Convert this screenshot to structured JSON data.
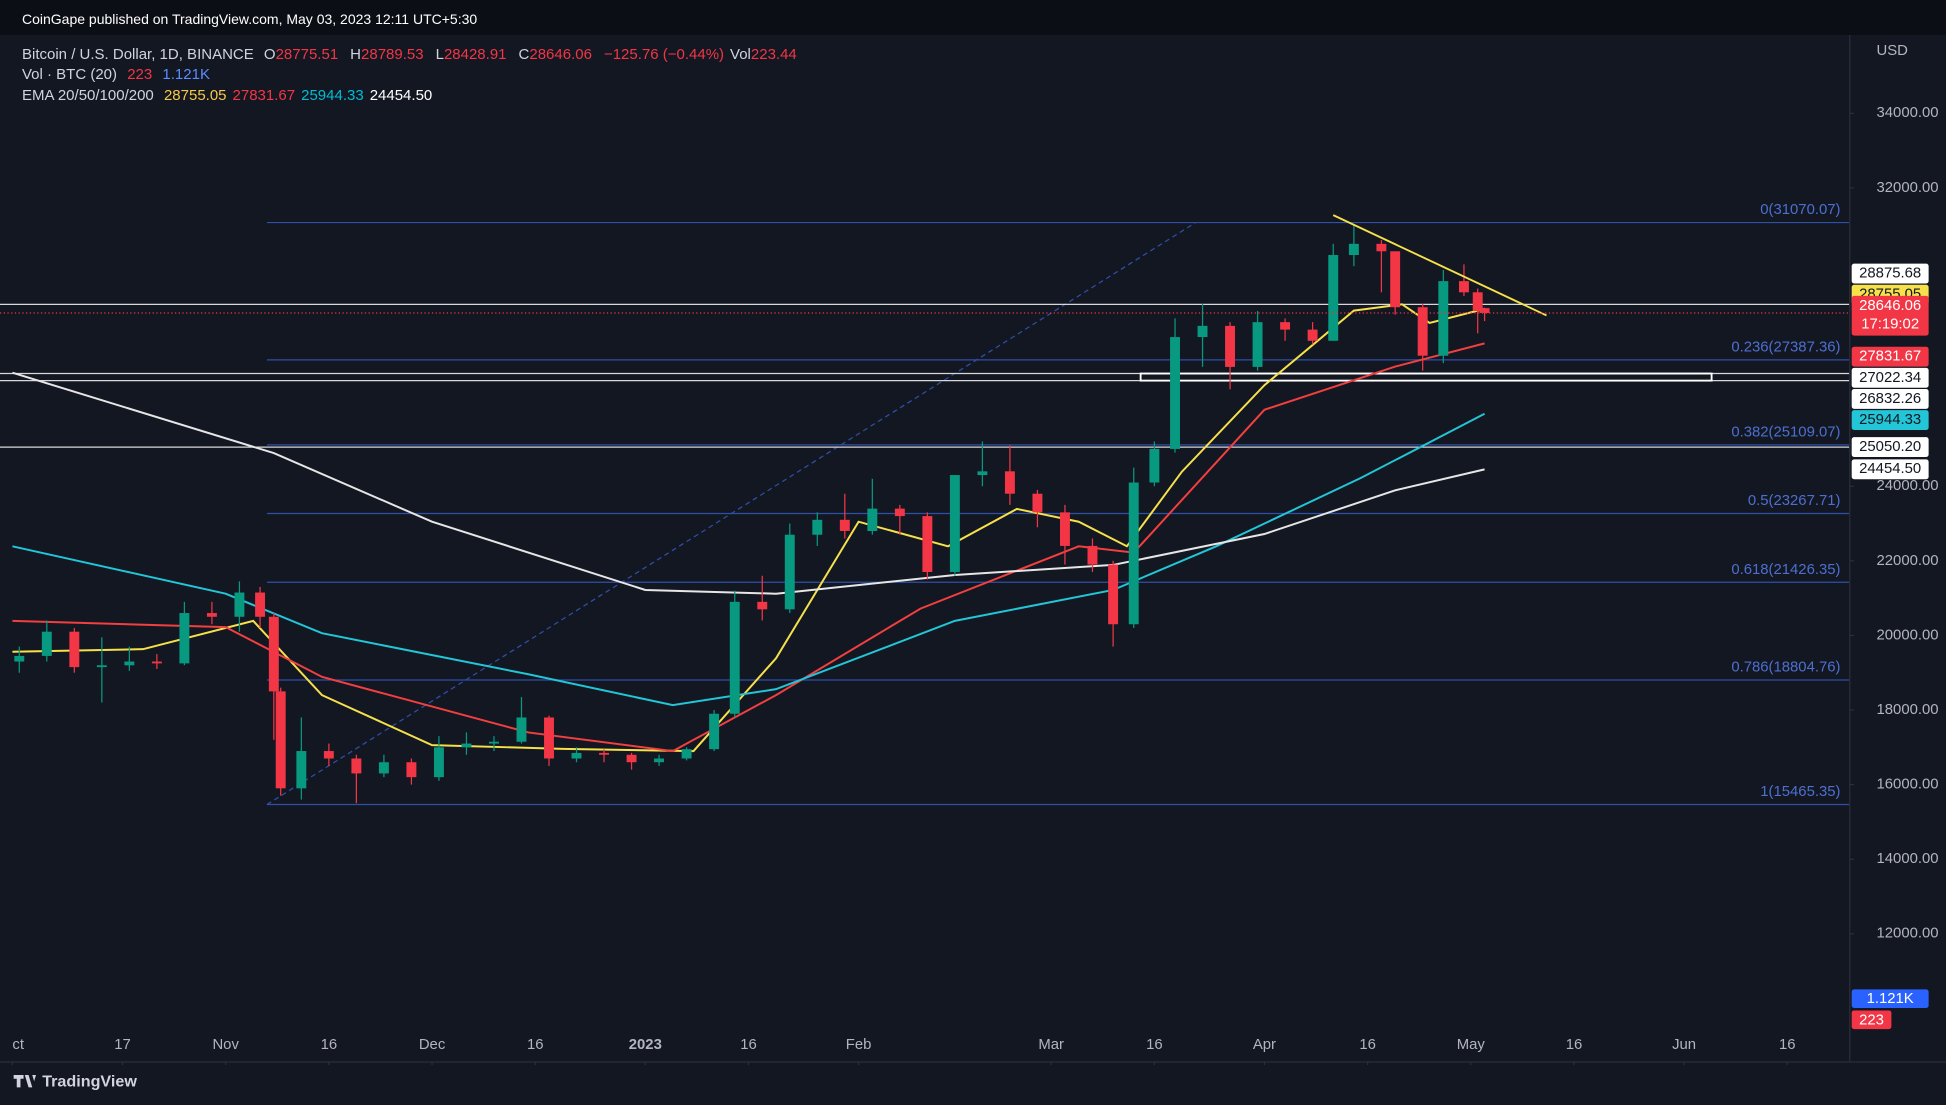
{
  "header": {
    "publisher": "CoinGape published on TradingView.com, May 03, 2023 12:11 UTC+5:30",
    "symbol": "Bitcoin / U.S. Dollar, 1D, BINANCE",
    "ohlc": [
      {
        "label": "O",
        "value": 28775.51
      },
      {
        "label": "H",
        "value": 28789.53
      },
      {
        "label": "L",
        "value": 28428.91
      },
      {
        "label": "C",
        "value": 28646.06
      }
    ],
    "change": "−125.76 (−0.44%)",
    "vol_label": "Vol",
    "vol": 223.44,
    "vol_study": "Vol · BTC (20)",
    "vol_last": 223,
    "vol_ma": "1.121K",
    "ema_study": "EMA 20/50/100/200",
    "ema_values": [
      {
        "value": 28755.05,
        "color": "#f7c948"
      },
      {
        "value": 27831.67,
        "color": "#f23645"
      },
      {
        "value": 25944.33,
        "color": "#00bcd4"
      },
      {
        "value": 24454.5,
        "label": "24454.50",
        "color": "#ffffff"
      }
    ]
  },
  "footer": "TradingView",
  "chart_data": {
    "type": "candlestick",
    "currency": "USD",
    "xlim": [
      "2022-10-01",
      "2023-06-25"
    ],
    "ylim": [
      8580,
      36100
    ],
    "yticks": [
      {
        "value": 12000,
        "label": "12000.00"
      },
      {
        "value": 14000,
        "label": "14000.00"
      },
      {
        "value": 16000,
        "label": "16000.00"
      },
      {
        "value": 18000,
        "label": "18000.00"
      },
      {
        "value": 20000,
        "label": "20000.00"
      },
      {
        "value": 22000,
        "label": "22000.00"
      },
      {
        "value": 24000,
        "label": "24000.00"
      },
      {
        "value": 32000,
        "label": "32000.00"
      },
      {
        "value": 34000,
        "label": "34000.00"
      }
    ],
    "xticks": [
      {
        "value": "2022-10-01",
        "label": "ct"
      },
      {
        "value": "2022-10-17",
        "label": "17"
      },
      {
        "value": "2022-11-01",
        "label": "Nov"
      },
      {
        "value": "2022-11-16",
        "label": "16"
      },
      {
        "value": "2022-12-01",
        "label": "Dec"
      },
      {
        "value": "2022-12-16",
        "label": "16"
      },
      {
        "value": "2023-01-01",
        "label": "2023"
      },
      {
        "value": "2023-01-16",
        "label": "16"
      },
      {
        "value": "2023-02-01",
        "label": "Feb"
      },
      {
        "value": "2023-03-01",
        "label": "Mar"
      },
      {
        "value": "2023-03-16",
        "label": "16"
      },
      {
        "value": "2023-04-01",
        "label": "Apr"
      },
      {
        "value": "2023-04-16",
        "label": "16"
      },
      {
        "value": "2023-05-01",
        "label": "May"
      },
      {
        "value": "2023-05-16",
        "label": "16"
      },
      {
        "value": "2023-06-01",
        "label": "Jun"
      },
      {
        "value": "2023-06-16",
        "label": "16"
      }
    ],
    "up_color": "#089981",
    "down_color": "#f23645",
    "candles": [
      {
        "date": "2022-10-02",
        "open": 19300,
        "high": 19700,
        "low": 19000,
        "close": 19450
      },
      {
        "date": "2022-10-06",
        "open": 19450,
        "high": 20400,
        "low": 19300,
        "close": 20100
      },
      {
        "date": "2022-10-10",
        "open": 20100,
        "high": 20200,
        "low": 19000,
        "close": 19150
      },
      {
        "date": "2022-10-14",
        "open": 19150,
        "high": 19950,
        "low": 18200,
        "close": 19200
      },
      {
        "date": "2022-10-18",
        "open": 19200,
        "high": 19700,
        "low": 19050,
        "close": 19300
      },
      {
        "date": "2022-10-22",
        "open": 19300,
        "high": 19500,
        "low": 19100,
        "close": 19250
      },
      {
        "date": "2022-10-26",
        "open": 19250,
        "high": 20900,
        "low": 19200,
        "close": 20600
      },
      {
        "date": "2022-10-30",
        "open": 20600,
        "high": 20900,
        "low": 20300,
        "close": 20500
      },
      {
        "date": "2022-11-03",
        "open": 20500,
        "high": 21450,
        "low": 20100,
        "close": 21150
      },
      {
        "date": "2022-11-06",
        "open": 21150,
        "high": 21300,
        "low": 20200,
        "close": 20500
      },
      {
        "date": "2022-11-08",
        "open": 20500,
        "high": 20600,
        "low": 17200,
        "close": 18500
      },
      {
        "date": "2022-11-09",
        "open": 18500,
        "high": 18600,
        "low": 15700,
        "close": 15900
      },
      {
        "date": "2022-11-12",
        "open": 15900,
        "high": 17800,
        "low": 15600,
        "close": 16900
      },
      {
        "date": "2022-11-16",
        "open": 16900,
        "high": 17100,
        "low": 16500,
        "close": 16700
      },
      {
        "date": "2022-11-20",
        "open": 16700,
        "high": 16800,
        "low": 15500,
        "close": 16300
      },
      {
        "date": "2022-11-24",
        "open": 16300,
        "high": 16800,
        "low": 16200,
        "close": 16600
      },
      {
        "date": "2022-11-28",
        "open": 16600,
        "high": 16700,
        "low": 16000,
        "close": 16200
      },
      {
        "date": "2022-12-02",
        "open": 16200,
        "high": 17300,
        "low": 16100,
        "close": 17000
      },
      {
        "date": "2022-12-06",
        "open": 17000,
        "high": 17400,
        "low": 16800,
        "close": 17100
      },
      {
        "date": "2022-12-10",
        "open": 17100,
        "high": 17300,
        "low": 16900,
        "close": 17150
      },
      {
        "date": "2022-12-14",
        "open": 17150,
        "high": 18350,
        "low": 17100,
        "close": 17800
      },
      {
        "date": "2022-12-18",
        "open": 17800,
        "high": 17850,
        "low": 16500,
        "close": 16700
      },
      {
        "date": "2022-12-22",
        "open": 16700,
        "high": 17000,
        "low": 16600,
        "close": 16850
      },
      {
        "date": "2022-12-26",
        "open": 16850,
        "high": 16950,
        "low": 16600,
        "close": 16800
      },
      {
        "date": "2022-12-30",
        "open": 16800,
        "high": 16850,
        "low": 16400,
        "close": 16600
      },
      {
        "date": "2023-01-03",
        "open": 16600,
        "high": 16800,
        "low": 16500,
        "close": 16700
      },
      {
        "date": "2023-01-07",
        "open": 16700,
        "high": 17000,
        "low": 16650,
        "close": 16950
      },
      {
        "date": "2023-01-11",
        "open": 16950,
        "high": 18000,
        "low": 16900,
        "close": 17900
      },
      {
        "date": "2023-01-14",
        "open": 17900,
        "high": 21200,
        "low": 17800,
        "close": 20900
      },
      {
        "date": "2023-01-18",
        "open": 20900,
        "high": 21600,
        "low": 20400,
        "close": 20700
      },
      {
        "date": "2023-01-22",
        "open": 20700,
        "high": 23000,
        "low": 20600,
        "close": 22700
      },
      {
        "date": "2023-01-26",
        "open": 22700,
        "high": 23300,
        "low": 22400,
        "close": 23100
      },
      {
        "date": "2023-01-30",
        "open": 23100,
        "high": 23800,
        "low": 22600,
        "close": 22800
      },
      {
        "date": "2023-02-03",
        "open": 22800,
        "high": 24200,
        "low": 22700,
        "close": 23400
      },
      {
        "date": "2023-02-07",
        "open": 23400,
        "high": 23500,
        "low": 22700,
        "close": 23200
      },
      {
        "date": "2023-02-11",
        "open": 23200,
        "high": 23300,
        "low": 21500,
        "close": 21700
      },
      {
        "date": "2023-02-15",
        "open": 21700,
        "high": 24300,
        "low": 21600,
        "close": 24300
      },
      {
        "date": "2023-02-19",
        "open": 24300,
        "high": 25200,
        "low": 24000,
        "close": 24400
      },
      {
        "date": "2023-02-23",
        "open": 24400,
        "high": 25100,
        "low": 23500,
        "close": 23800
      },
      {
        "date": "2023-02-27",
        "open": 23800,
        "high": 23900,
        "low": 22900,
        "close": 23300
      },
      {
        "date": "2023-03-03",
        "open": 23300,
        "high": 23500,
        "low": 21900,
        "close": 22400
      },
      {
        "date": "2023-03-07",
        "open": 22400,
        "high": 22600,
        "low": 21700,
        "close": 21900
      },
      {
        "date": "2023-03-10",
        "open": 21900,
        "high": 22000,
        "low": 19700,
        "close": 20300
      },
      {
        "date": "2023-03-13",
        "open": 20300,
        "high": 24500,
        "low": 20200,
        "close": 24100
      },
      {
        "date": "2023-03-16",
        "open": 24100,
        "high": 25200,
        "low": 24000,
        "close": 25000
      },
      {
        "date": "2023-03-19",
        "open": 25000,
        "high": 28500,
        "low": 24900,
        "close": 28000
      },
      {
        "date": "2023-03-23",
        "open": 28000,
        "high": 28900,
        "low": 27200,
        "close": 28300
      },
      {
        "date": "2023-03-27",
        "open": 28300,
        "high": 28400,
        "low": 26600,
        "close": 27200
      },
      {
        "date": "2023-03-31",
        "open": 27200,
        "high": 28700,
        "low": 27100,
        "close": 28400
      },
      {
        "date": "2023-04-04",
        "open": 28400,
        "high": 28500,
        "low": 27900,
        "close": 28200
      },
      {
        "date": "2023-04-08",
        "open": 28200,
        "high": 28400,
        "low": 27800,
        "close": 27900
      },
      {
        "date": "2023-04-11",
        "open": 27900,
        "high": 30500,
        "low": 27900,
        "close": 30200
      },
      {
        "date": "2023-04-14",
        "open": 30200,
        "high": 31000,
        "low": 29900,
        "close": 30500
      },
      {
        "date": "2023-04-18",
        "open": 30500,
        "high": 30600,
        "low": 29200,
        "close": 30300
      },
      {
        "date": "2023-04-20",
        "open": 30300,
        "high": 30300,
        "low": 28600,
        "close": 28800
      },
      {
        "date": "2023-04-24",
        "open": 28800,
        "high": 28900,
        "low": 27100,
        "close": 27500
      },
      {
        "date": "2023-04-27",
        "open": 27500,
        "high": 29800,
        "low": 27300,
        "close": 29500
      },
      {
        "date": "2023-04-30",
        "open": 29500,
        "high": 29950,
        "low": 29100,
        "close": 29200
      },
      {
        "date": "2023-05-02",
        "open": 29200,
        "high": 29300,
        "low": 28100,
        "close": 28700
      },
      {
        "date": "2023-05-03",
        "open": 28775.51,
        "high": 28789.53,
        "low": 28428.91,
        "close": 28646.06
      }
    ],
    "ema": [
      {
        "color": "#f7e14a",
        "x": [
          "2022-10-01",
          "2022-10-20",
          "2022-11-05",
          "2022-11-15",
          "2022-12-01",
          "2022-12-20",
          "2023-01-08",
          "2023-01-20",
          "2023-02-01",
          "2023-02-14",
          "2023-02-24",
          "2023-03-05",
          "2023-03-12",
          "2023-03-20",
          "2023-04-01",
          "2023-04-14",
          "2023-04-21",
          "2023-04-25",
          "2023-05-03"
        ],
        "values": [
          19560,
          19630,
          20390,
          18400,
          17060,
          16960,
          16900,
          19390,
          23050,
          22390,
          23390,
          23050,
          22390,
          24390,
          26710,
          28710,
          28880,
          28380,
          28755.05
        ]
      },
      {
        "color": "#f23f3f",
        "x": [
          "2022-10-01",
          "2022-11-01",
          "2022-11-15",
          "2022-12-15",
          "2023-01-05",
          "2023-01-20",
          "2023-02-10",
          "2023-03-05",
          "2023-03-13",
          "2023-04-01",
          "2023-04-20",
          "2023-05-03"
        ],
        "values": [
          20390,
          20225,
          18890,
          17400,
          16900,
          18400,
          20720,
          22390,
          22220,
          26050,
          27210,
          27831.67
        ]
      },
      {
        "color": "#22c6d6",
        "x": [
          "2022-10-01",
          "2022-11-01",
          "2022-11-15",
          "2022-12-15",
          "2023-01-05",
          "2023-01-20",
          "2023-02-15",
          "2023-03-10",
          "2023-03-25",
          "2023-04-15",
          "2023-05-03"
        ],
        "values": [
          22390,
          21120,
          20060,
          18960,
          18130,
          18560,
          20390,
          21220,
          22390,
          24220,
          25944.33
        ]
      },
      {
        "color": "#e6e6e6",
        "x": [
          "2022-10-01",
          "2022-11-08",
          "2022-12-01",
          "2023-01-01",
          "2023-01-20",
          "2023-02-15",
          "2023-03-10",
          "2023-04-01",
          "2023-04-20",
          "2023-05-03"
        ],
        "values": [
          27046,
          24890,
          23050,
          21220,
          21120,
          21620,
          21890,
          22720,
          23890,
          24454.5
        ]
      }
    ],
    "fib": {
      "color": "#2f4fa8",
      "text_color": "#4d6fd0",
      "from": [
        "2022-11-07",
        15465.35
      ],
      "to": [
        "2023-03-22",
        31070.07
      ],
      "levels": [
        {
          "value": 31070.07,
          "label": "0(31070.07)"
        },
        {
          "value": 27387.36,
          "label": "0.236(27387.36)"
        },
        {
          "value": 25109.07,
          "label": "0.382(25109.07)"
        },
        {
          "value": 23267.71,
          "label": "0.5(23267.71)"
        },
        {
          "value": 21426.35,
          "label": "0.618(21426.35)"
        },
        {
          "value": 18804.76,
          "label": "0.786(18804.76)"
        },
        {
          "value": 15465.35,
          "label": "1(15465.35)"
        }
      ]
    },
    "hlines": [
      28875.68,
      27022.34,
      26832.26,
      25050.2
    ],
    "zone": {
      "from": "2023-03-14",
      "to": "2023-06-05",
      "top": 27022.34,
      "bottom": 26832.26
    },
    "trendline": {
      "color": "#f7e14a",
      "from": [
        "2023-04-11",
        31270
      ],
      "to": [
        "2023-05-12",
        28580
      ]
    },
    "countdown": "17:19:02",
    "price_labels": [
      {
        "value": 28875.68,
        "bg": "#ffffff",
        "fg": "#131722"
      },
      {
        "value": 28755.05,
        "bg": "#f7e14a",
        "fg": "#131722"
      },
      {
        "value": 28646.06,
        "bg": "#f23645",
        "fg": "#ffffff",
        "current": true
      },
      {
        "value": 27831.67,
        "bg": "#f23645",
        "fg": "#ffffff"
      },
      {
        "value": 27022.34,
        "bg": "#ffffff",
        "fg": "#131722"
      },
      {
        "value": 26832.26,
        "bg": "#ffffff",
        "fg": "#131722"
      },
      {
        "value": 25944.33,
        "bg": "#22c6d6",
        "fg": "#131722"
      },
      {
        "value": 25050.2,
        "label": "25050.20",
        "bg": "#ffffff",
        "fg": "#131722"
      },
      {
        "value": 24454.5,
        "label": "24454.50",
        "bg": "#ffffff",
        "fg": "#131722"
      }
    ]
  }
}
